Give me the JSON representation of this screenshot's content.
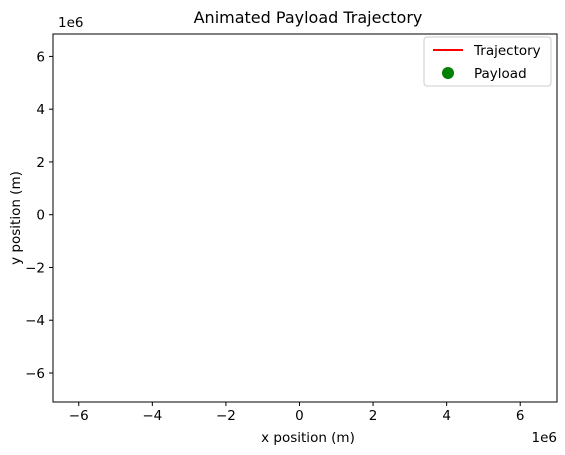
{
  "chart_data": {
    "type": "line",
    "title": "Animated Payload Trajectory",
    "xlabel": "x position (m)",
    "ylabel": "y position (m)",
    "xlim": [
      -6.7,
      7.0
    ],
    "ylim": [
      -7.1,
      6.85
    ],
    "x_ticks": [
      -6,
      -4,
      -2,
      0,
      2,
      4,
      6
    ],
    "y_ticks": [
      -6,
      -4,
      -2,
      0,
      2,
      4,
      6
    ],
    "x_tick_labels": [
      "−6",
      "−4",
      "−2",
      "0",
      "2",
      "4",
      "6"
    ],
    "y_tick_labels": [
      "−6",
      "−4",
      "−2",
      "0",
      "2",
      "4",
      "6"
    ],
    "x_offset_text": "1e6",
    "y_offset_text": "1e6",
    "grid": false,
    "legend_position": "top-right",
    "series": [
      {
        "name": "Trajectory",
        "kind": "line",
        "color": "#ff0000",
        "x": [],
        "y": []
      },
      {
        "name": "Payload",
        "kind": "marker",
        "color": "#008000",
        "x": [],
        "y": []
      }
    ]
  }
}
